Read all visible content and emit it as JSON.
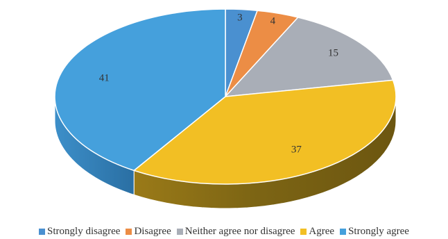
{
  "chart_data": {
    "type": "pie",
    "style": "3d",
    "title": "",
    "categories": [
      "Strongly disagree",
      "Disagree",
      "Neither agree nor disagree",
      "Agree",
      "Strongly agree"
    ],
    "values": [
      3,
      4,
      15,
      37,
      41
    ],
    "colors": [
      "#4a90d0",
      "#ec8d45",
      "#a9aeb7",
      "#f2bf24",
      "#45a0dc"
    ],
    "legend_position": "bottom",
    "data_labels": true
  }
}
